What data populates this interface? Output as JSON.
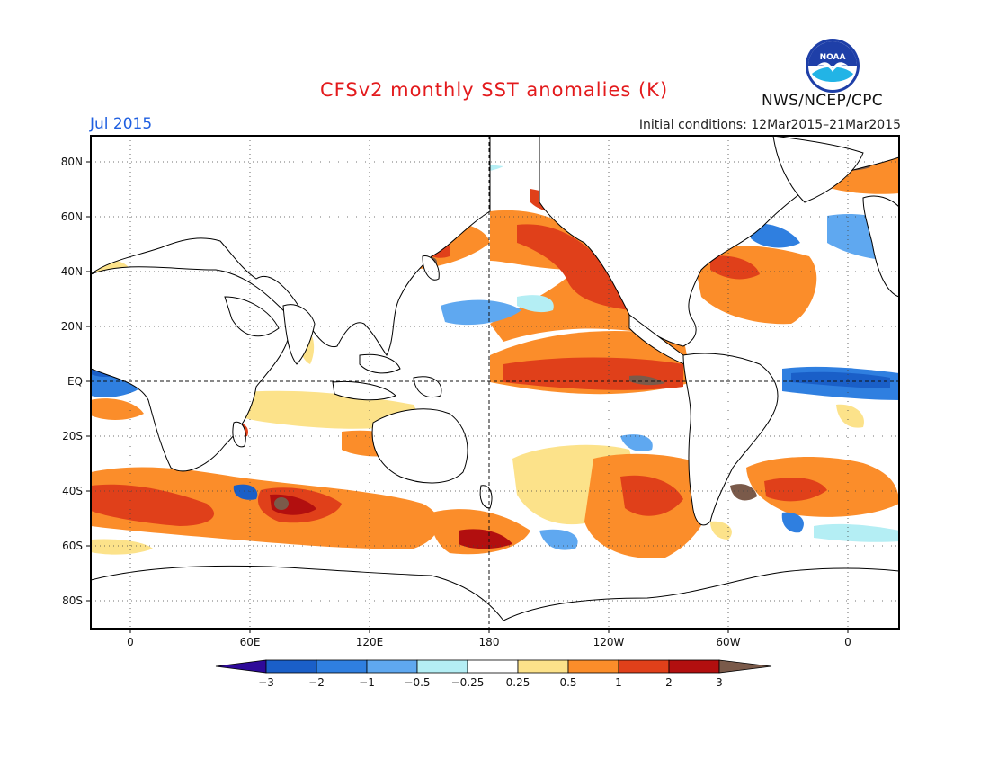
{
  "header": {
    "title": "CFSv2 monthly SST anomalies (K)",
    "month": "Jul 2015",
    "initial_conditions": "Initial conditions: 12Mar2015–21Mar2015",
    "agency": "NWS/NCEP/CPC",
    "logo_text": "NOAA"
  },
  "map": {
    "lat_labels": [
      "80N",
      "60N",
      "40N",
      "20N",
      "EQ",
      "20S",
      "40S",
      "60S",
      "80S"
    ],
    "lon_labels": [
      "0",
      "60E",
      "120E",
      "180",
      "120W",
      "60W",
      "0"
    ]
  },
  "colorbar": {
    "labels": [
      "−3",
      "−2",
      "−1",
      "−0.5",
      "−0.25",
      "0.25",
      "0.5",
      "1",
      "2",
      "3"
    ],
    "colors": {
      "lt_m3": "#2e0a99",
      "m3_m2": "#1a5fc8",
      "m2_m1": "#2f7fe0",
      "m1_m05": "#5fa8f0",
      "m05_m025": "#b4eef4",
      "neutral": "#ffffff",
      "p025_p05": "#fce28a",
      "p05_p1": "#fb8d2a",
      "p1_p2": "#e0401a",
      "p2_p3": "#b20f0f",
      "gt_p3": "#7a5a4a"
    }
  }
}
